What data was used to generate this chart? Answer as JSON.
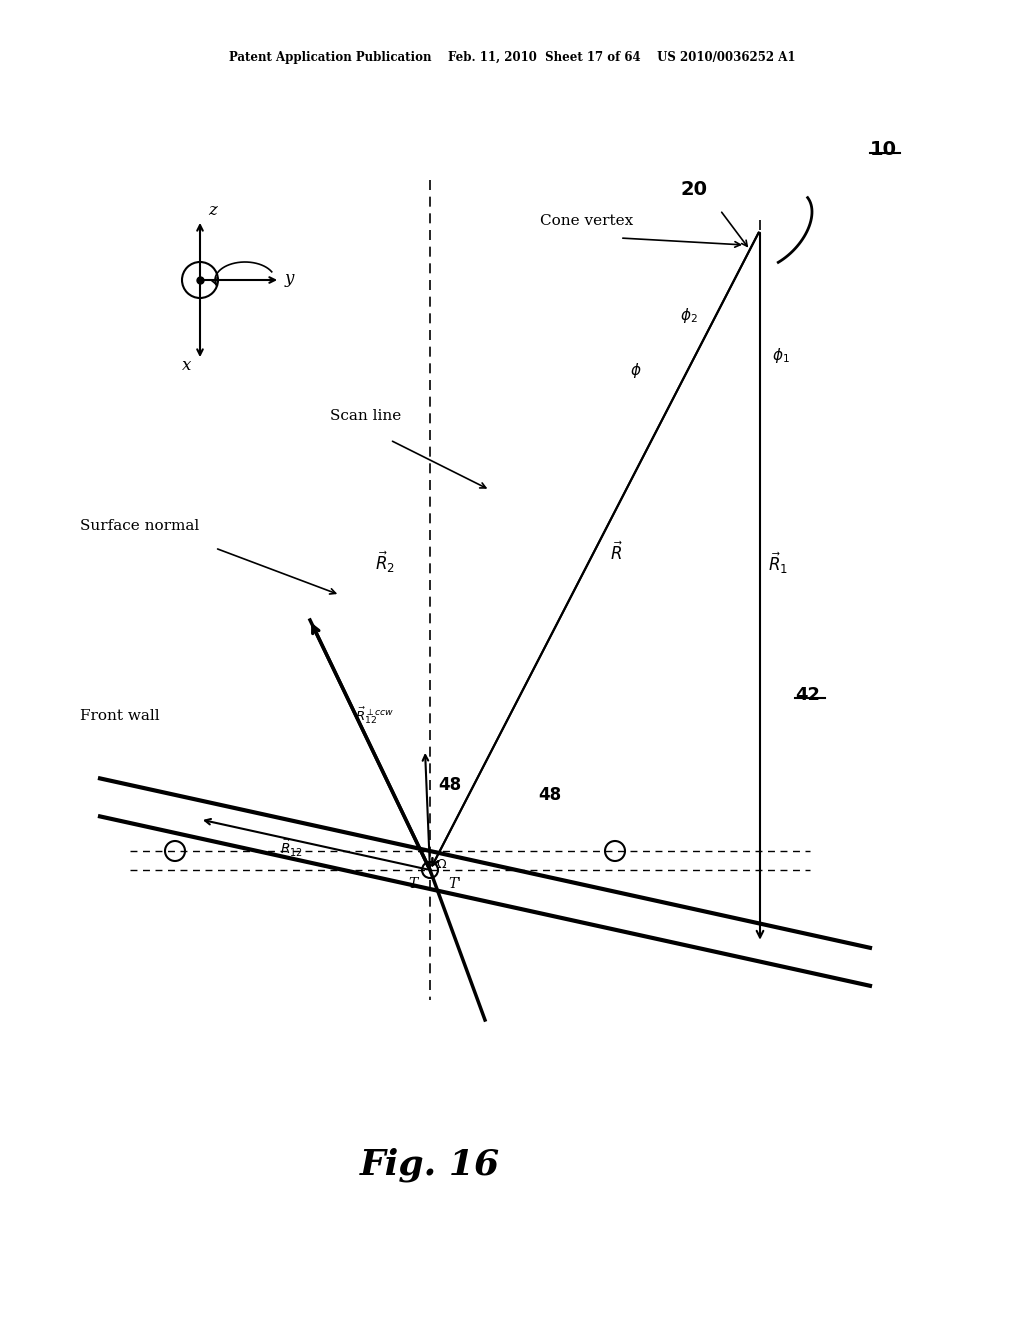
{
  "bg_color": "#ffffff",
  "fig_width": 10.24,
  "fig_height": 13.2,
  "header_text": "Patent Application Publication    Feb. 11, 2010  Sheet 17 of 64    US 2010/0036252 A1",
  "fig_label": "Fig. 16",
  "label_10": "10",
  "label_20": "20",
  "label_42": "42",
  "label_48a": "48",
  "label_48b": "48",
  "cone_vertex_text": "Cone vertex",
  "scan_line_text": "Scan line",
  "surface_normal_text": "Surface normal",
  "front_wall_text": "Front wall"
}
